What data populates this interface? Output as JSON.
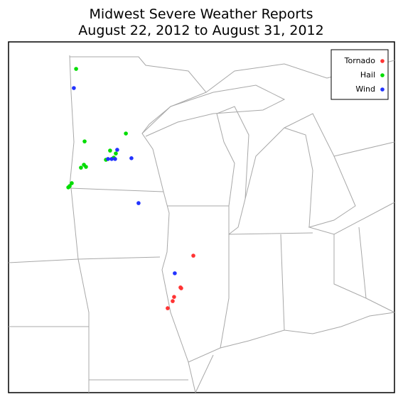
{
  "chart_data": {
    "type": "scatter",
    "title": "Midwest Severe Weather Reports",
    "subtitle": "August 22, 2012 to August 31, 2012",
    "legend": "top-right",
    "series": [
      {
        "name": "Tornado",
        "color": "#ff3333",
        "x": [
          -89.55,
          -90.25,
          -90.66,
          -90.74,
          -91.03,
          -90.29
        ],
        "y": [
          40.93,
          39.69,
          39.36,
          39.2,
          38.93,
          39.72
        ]
      },
      {
        "name": "Hail",
        "color": "#00dd00",
        "x": [
          -96.31,
          -93.44,
          -95.82,
          -94.35,
          -94.02,
          -94.14,
          -94.59,
          -95.86,
          -96.03,
          -95.74,
          -96.56,
          -96.68,
          -96.76
        ],
        "y": [
          48.04,
          45.58,
          45.28,
          44.93,
          44.82,
          44.66,
          44.58,
          44.39,
          44.28,
          44.31,
          43.69,
          43.58,
          43.53
        ]
      },
      {
        "name": "Wind",
        "color": "#2233ff",
        "x": [
          -96.44,
          -93.94,
          -94.47,
          -94.06,
          -94.26,
          -93.12,
          -92.71,
          -90.62
        ],
        "y": [
          47.31,
          44.96,
          44.61,
          44.61,
          44.61,
          44.64,
          42.93,
          40.26
        ]
      }
    ]
  }
}
